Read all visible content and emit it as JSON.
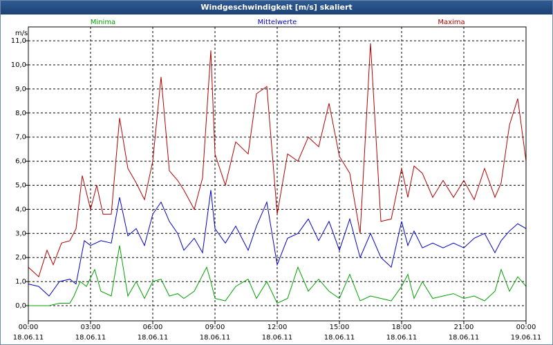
{
  "chart_data": {
    "type": "line",
    "title": "Windgeschwindigkeit [m/s] skaliert",
    "ylabel": "m/s",
    "ylim": [
      -0.6,
      11.5
    ],
    "yticks": [
      "0,0",
      "1,0",
      "2,0",
      "3,0",
      "4,0",
      "5,0",
      "6,0",
      "7,0",
      "8,0",
      "9,0",
      "10,0",
      "11,0"
    ],
    "xticks": [
      {
        "time": "00:00",
        "date": "18.06.11"
      },
      {
        "time": "03:00",
        "date": "18.06.11"
      },
      {
        "time": "06:00",
        "date": "18.06.11"
      },
      {
        "time": "09:00",
        "date": "18.06.11"
      },
      {
        "time": "12:00",
        "date": "18.06.11"
      },
      {
        "time": "15:00",
        "date": "18.06.11"
      },
      {
        "time": "18:00",
        "date": "18.06.11"
      },
      {
        "time": "21:00",
        "date": "18.06.11"
      },
      {
        "time": "00:00",
        "date": "19.06.11"
      }
    ],
    "x_unit": "hours since 18.06.11 00:00",
    "grid": true,
    "series": [
      {
        "name": "Minima",
        "color": "#00a000",
        "points": [
          [
            0,
            0
          ],
          [
            1,
            0
          ],
          [
            1.5,
            0.1
          ],
          [
            2,
            0.1
          ],
          [
            2.2,
            0.4
          ],
          [
            2.5,
            1.0
          ],
          [
            2.8,
            0.8
          ],
          [
            3.2,
            1.5
          ],
          [
            3.5,
            0.6
          ],
          [
            4.0,
            0.4
          ],
          [
            4.4,
            2.5
          ],
          [
            4.8,
            0.4
          ],
          [
            5.2,
            1.0
          ],
          [
            5.6,
            0.3
          ],
          [
            6.0,
            1.0
          ],
          [
            6.4,
            1.1
          ],
          [
            6.8,
            0.4
          ],
          [
            7.2,
            0.5
          ],
          [
            7.5,
            0.3
          ],
          [
            8.0,
            0.6
          ],
          [
            8.6,
            1.6
          ],
          [
            8.8,
            1.0
          ],
          [
            9.0,
            0.3
          ],
          [
            9.5,
            0.2
          ],
          [
            10.0,
            0.8
          ],
          [
            10.6,
            1.1
          ],
          [
            11.0,
            0.3
          ],
          [
            11.5,
            1.0
          ],
          [
            12.0,
            0.1
          ],
          [
            12.5,
            0.3
          ],
          [
            13.0,
            1.6
          ],
          [
            13.5,
            0.6
          ],
          [
            14.0,
            1.1
          ],
          [
            14.5,
            0.6
          ],
          [
            15.0,
            0.3
          ],
          [
            15.5,
            1.3
          ],
          [
            16.0,
            0.2
          ],
          [
            16.5,
            0.4
          ],
          [
            17.0,
            0.3
          ],
          [
            17.5,
            0.2
          ],
          [
            18.0,
            0.8
          ],
          [
            18.3,
            1.3
          ],
          [
            18.6,
            0.3
          ],
          [
            19.0,
            1.0
          ],
          [
            19.5,
            0.3
          ],
          [
            20.0,
            0.4
          ],
          [
            20.5,
            0.5
          ],
          [
            21.0,
            0.3
          ],
          [
            21.5,
            0.4
          ],
          [
            22.0,
            0.2
          ],
          [
            22.5,
            0.6
          ],
          [
            22.8,
            1.5
          ],
          [
            23.2,
            0.6
          ],
          [
            23.6,
            1.2
          ],
          [
            24.0,
            0.8
          ]
        ]
      },
      {
        "name": "Mittelwerte",
        "color": "#0000c0",
        "points": [
          [
            0,
            0.9
          ],
          [
            0.5,
            0.8
          ],
          [
            1.0,
            0.4
          ],
          [
            1.5,
            1.0
          ],
          [
            2.0,
            1.1
          ],
          [
            2.3,
            0.9
          ],
          [
            2.7,
            2.7
          ],
          [
            3.0,
            2.5
          ],
          [
            3.5,
            2.7
          ],
          [
            4.0,
            2.6
          ],
          [
            4.4,
            4.5
          ],
          [
            4.8,
            2.9
          ],
          [
            5.2,
            3.2
          ],
          [
            5.6,
            2.5
          ],
          [
            6.0,
            3.8
          ],
          [
            6.4,
            4.3
          ],
          [
            6.8,
            3.5
          ],
          [
            7.2,
            3.0
          ],
          [
            7.5,
            2.3
          ],
          [
            8.0,
            2.8
          ],
          [
            8.4,
            2.2
          ],
          [
            8.8,
            4.8
          ],
          [
            9.0,
            3.2
          ],
          [
            9.5,
            2.6
          ],
          [
            10.0,
            3.3
          ],
          [
            10.6,
            2.3
          ],
          [
            11.0,
            3.3
          ],
          [
            11.5,
            4.3
          ],
          [
            12.0,
            1.7
          ],
          [
            12.5,
            2.8
          ],
          [
            13.0,
            3.0
          ],
          [
            13.5,
            3.6
          ],
          [
            14.0,
            2.7
          ],
          [
            14.5,
            3.5
          ],
          [
            15.0,
            2.3
          ],
          [
            15.5,
            3.6
          ],
          [
            16.0,
            2.0
          ],
          [
            16.5,
            3.0
          ],
          [
            17.0,
            2.0
          ],
          [
            17.5,
            1.6
          ],
          [
            18.0,
            3.5
          ],
          [
            18.3,
            2.5
          ],
          [
            18.6,
            3.1
          ],
          [
            19.0,
            2.4
          ],
          [
            19.5,
            2.6
          ],
          [
            20.0,
            2.4
          ],
          [
            20.5,
            2.6
          ],
          [
            21.0,
            2.4
          ],
          [
            21.5,
            2.8
          ],
          [
            22.0,
            3.0
          ],
          [
            22.5,
            2.2
          ],
          [
            22.8,
            2.7
          ],
          [
            23.2,
            3.1
          ],
          [
            23.6,
            3.4
          ],
          [
            24.0,
            3.2
          ]
        ]
      },
      {
        "name": "Maxima",
        "color": "#b00000",
        "points": [
          [
            0,
            1.6
          ],
          [
            0.5,
            1.2
          ],
          [
            0.9,
            2.3
          ],
          [
            1.2,
            1.7
          ],
          [
            1.6,
            2.6
          ],
          [
            2.0,
            2.7
          ],
          [
            2.3,
            3.2
          ],
          [
            2.6,
            5.4
          ],
          [
            3.0,
            4.0
          ],
          [
            3.3,
            5.0
          ],
          [
            3.6,
            3.8
          ],
          [
            4.0,
            3.8
          ],
          [
            4.4,
            7.8
          ],
          [
            4.8,
            5.7
          ],
          [
            5.2,
            5.1
          ],
          [
            5.6,
            4.4
          ],
          [
            6.0,
            6.0
          ],
          [
            6.4,
            9.5
          ],
          [
            6.8,
            5.6
          ],
          [
            7.2,
            5.2
          ],
          [
            7.5,
            4.8
          ],
          [
            8.0,
            4.0
          ],
          [
            8.4,
            5.3
          ],
          [
            8.8,
            10.6
          ],
          [
            9.0,
            6.3
          ],
          [
            9.5,
            5.0
          ],
          [
            10.0,
            6.8
          ],
          [
            10.6,
            6.3
          ],
          [
            11.0,
            8.8
          ],
          [
            11.5,
            9.1
          ],
          [
            12.0,
            3.8
          ],
          [
            12.5,
            6.3
          ],
          [
            13.0,
            6.0
          ],
          [
            13.5,
            7.0
          ],
          [
            14.0,
            6.6
          ],
          [
            14.5,
            8.4
          ],
          [
            15.0,
            6.2
          ],
          [
            15.5,
            5.5
          ],
          [
            16.0,
            3.0
          ],
          [
            16.5,
            10.9
          ],
          [
            17.0,
            3.5
          ],
          [
            17.5,
            3.6
          ],
          [
            18.0,
            5.7
          ],
          [
            18.3,
            4.5
          ],
          [
            18.6,
            5.8
          ],
          [
            19.0,
            5.5
          ],
          [
            19.5,
            4.5
          ],
          [
            20.0,
            5.2
          ],
          [
            20.5,
            4.5
          ],
          [
            21.0,
            5.2
          ],
          [
            21.5,
            4.4
          ],
          [
            22.0,
            5.7
          ],
          [
            22.5,
            4.5
          ],
          [
            22.8,
            5.1
          ],
          [
            23.2,
            7.5
          ],
          [
            23.6,
            8.6
          ],
          [
            24.0,
            6.0
          ]
        ]
      }
    ]
  }
}
